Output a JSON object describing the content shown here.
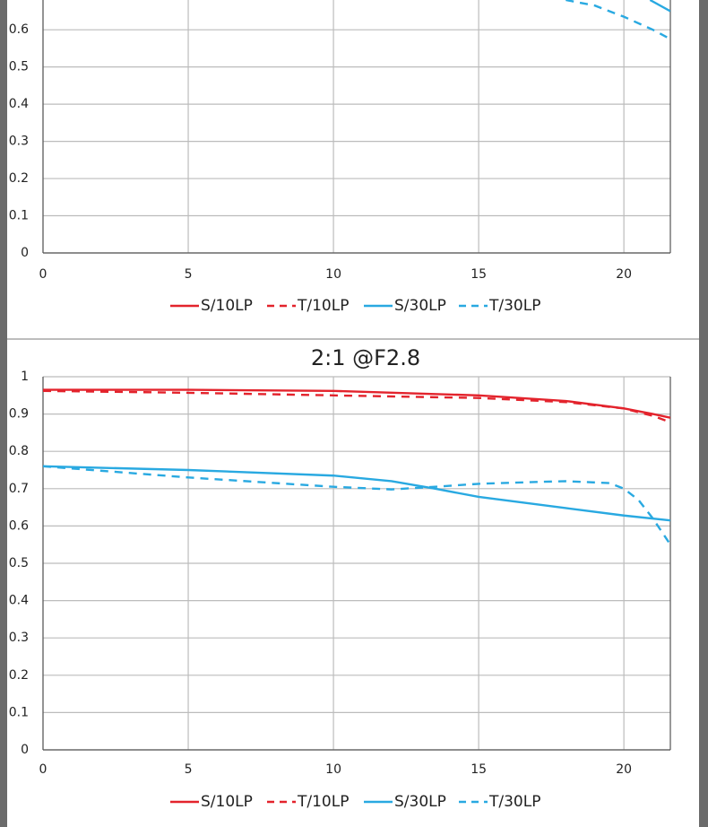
{
  "chart_data": [
    {
      "type": "line",
      "xlim": [
        0,
        21.6
      ],
      "ylim": [
        0,
        0.68
      ],
      "xticks": [
        0,
        5,
        10,
        15,
        20
      ],
      "yticks": [
        0,
        0.1,
        0.2,
        0.3,
        0.4,
        0.5,
        0.6
      ],
      "grid": true,
      "series": [
        {
          "name": "S/10LP",
          "color": "#e3232c",
          "line_style": "solid",
          "x": [],
          "values": []
        },
        {
          "name": "T/10LP",
          "color": "#e3232c",
          "line_style": "dashed",
          "x": [],
          "values": []
        },
        {
          "name": "S/30LP",
          "color": "#29a9e1",
          "line_style": "solid",
          "x": [
            20.9,
            21.6
          ],
          "values": [
            0.68,
            0.65
          ]
        },
        {
          "name": "T/30LP",
          "color": "#29a9e1",
          "line_style": "dashed",
          "x": [
            18,
            19,
            20,
            21,
            21.6
          ],
          "values": [
            0.68,
            0.665,
            0.635,
            0.6,
            0.575
          ]
        }
      ]
    },
    {
      "type": "line",
      "title": "2:1  @F2.8",
      "xlim": [
        0,
        21.6
      ],
      "ylim": [
        0,
        1
      ],
      "xticks": [
        0,
        5,
        10,
        15,
        20
      ],
      "yticks": [
        0,
        0.1,
        0.2,
        0.3,
        0.4,
        0.5,
        0.6,
        0.7,
        0.8,
        0.9,
        1
      ],
      "grid": true,
      "series": [
        {
          "name": "S/10LP",
          "color": "#e3232c",
          "line_style": "solid",
          "x": [
            0,
            5,
            10,
            15,
            18,
            20,
            21,
            21.6
          ],
          "values": [
            0.965,
            0.965,
            0.962,
            0.95,
            0.935,
            0.915,
            0.9,
            0.89
          ]
        },
        {
          "name": "T/10LP",
          "color": "#e3232c",
          "line_style": "dashed",
          "x": [
            0,
            5,
            10,
            15,
            18,
            20,
            21,
            21.6
          ],
          "values": [
            0.962,
            0.957,
            0.95,
            0.943,
            0.932,
            0.915,
            0.895,
            0.878
          ]
        },
        {
          "name": "S/30LP",
          "color": "#29a9e1",
          "line_style": "solid",
          "x": [
            0,
            5,
            10,
            12,
            13.5,
            15,
            18,
            20,
            21.6
          ],
          "values": [
            0.76,
            0.75,
            0.735,
            0.72,
            0.7,
            0.678,
            0.648,
            0.628,
            0.615
          ]
        },
        {
          "name": "T/30LP",
          "color": "#29a9e1",
          "line_style": "dashed",
          "x": [
            0,
            5,
            10,
            12,
            13.5,
            15,
            17,
            18,
            19.5,
            20,
            20.5,
            21,
            21.6
          ],
          "values": [
            0.76,
            0.73,
            0.705,
            0.698,
            0.705,
            0.713,
            0.718,
            0.72,
            0.715,
            0.7,
            0.67,
            0.62,
            0.55
          ]
        }
      ]
    }
  ]
}
